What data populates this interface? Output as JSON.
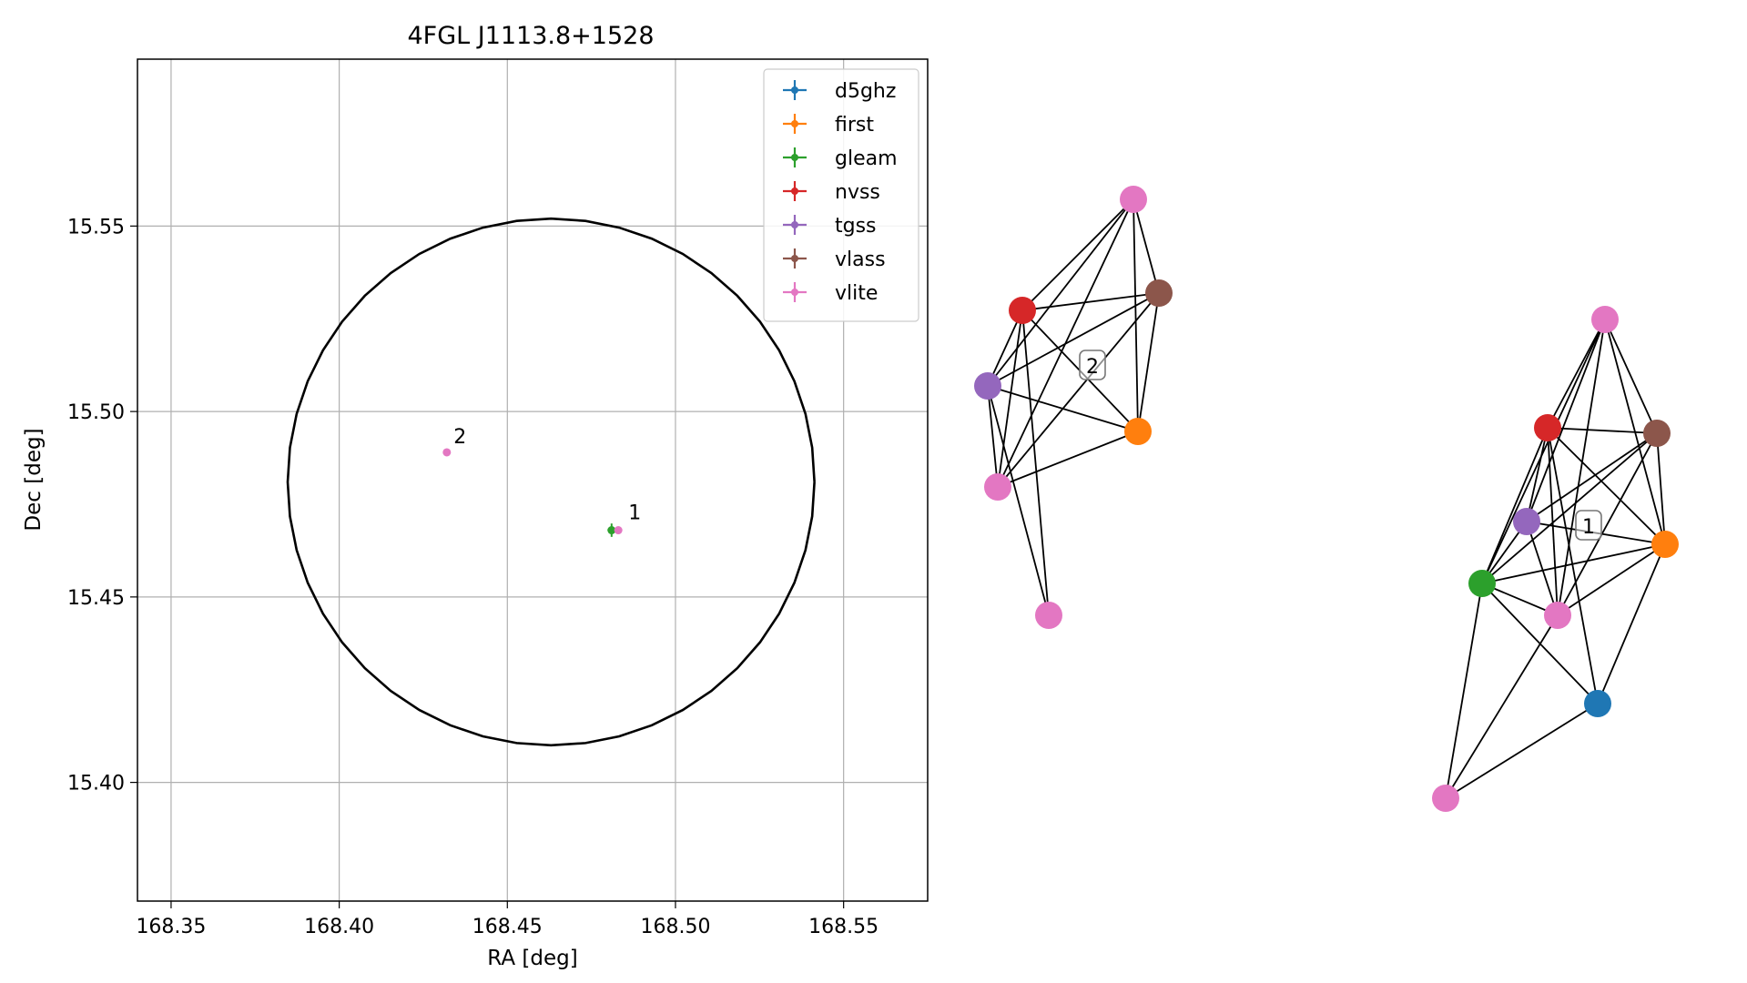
{
  "chart_data": [
    {
      "type": "scatter",
      "title": "4FGL J1113.8+1528",
      "xlabel": "RA [deg]",
      "ylabel": "Dec [deg]",
      "xlim": [
        168.34,
        168.575
      ],
      "ylim": [
        15.368,
        15.595
      ],
      "xticks": [
        168.35,
        168.4,
        168.45,
        168.5,
        168.55
      ],
      "yticks": [
        15.4,
        15.45,
        15.5,
        15.55
      ],
      "xtick_labels": [
        "168.35",
        "168.40",
        "168.45",
        "168.50",
        "168.55"
      ],
      "ytick_labels": [
        "15.40",
        "15.45",
        "15.50",
        "15.55"
      ],
      "grid": true,
      "legend_position": "top-right",
      "circle": {
        "center_ra": 168.463,
        "center_dec": 15.481,
        "radius_dec": 0.071,
        "color": "#000000"
      },
      "series": [
        {
          "name": "d5ghz",
          "color": "#1f77b4",
          "points": []
        },
        {
          "name": "first",
          "color": "#ff7f0e",
          "points": []
        },
        {
          "name": "gleam",
          "color": "#2ca02c",
          "points": [
            {
              "x": 168.481,
              "y": 15.468,
              "xerr": 0.0012,
              "yerr": 0.0018
            }
          ]
        },
        {
          "name": "nvss",
          "color": "#d62728",
          "points": []
        },
        {
          "name": "tgss",
          "color": "#9467bd",
          "points": []
        },
        {
          "name": "vlass",
          "color": "#8c564b",
          "points": []
        },
        {
          "name": "vlite",
          "color": "#e377c2",
          "points": [
            {
              "x": 168.483,
              "y": 15.468,
              "xerr": 0.0007,
              "yerr": 0.0007
            },
            {
              "x": 168.432,
              "y": 15.489,
              "xerr": 0.0008,
              "yerr": 0.0008
            }
          ]
        }
      ],
      "annotations": [
        {
          "text": "1",
          "x": 168.486,
          "y": 15.4695
        },
        {
          "text": "2",
          "x": 168.434,
          "y": 15.49
        }
      ]
    },
    {
      "type": "network",
      "clusters": [
        {
          "label": "2",
          "nodes": [
            {
              "id": "vlite_a",
              "catalog": "vlite",
              "color": "#e377c2"
            },
            {
              "id": "vlass",
              "catalog": "vlass",
              "color": "#8c564b"
            },
            {
              "id": "nvss",
              "catalog": "nvss",
              "color": "#d62728"
            },
            {
              "id": "tgss",
              "catalog": "tgss",
              "color": "#9467bd"
            },
            {
              "id": "first",
              "catalog": "first",
              "color": "#ff7f0e"
            },
            {
              "id": "vlite_b",
              "catalog": "vlite",
              "color": "#e377c2"
            },
            {
              "id": "vlite_c",
              "catalog": "vlite",
              "color": "#e377c2"
            }
          ],
          "edges": [
            [
              "vlite_a",
              "nvss"
            ],
            [
              "vlite_a",
              "tgss"
            ],
            [
              "vlite_a",
              "vlass"
            ],
            [
              "vlite_a",
              "first"
            ],
            [
              "vlite_a",
              "vlite_b"
            ],
            [
              "nvss",
              "vlass"
            ],
            [
              "nvss",
              "tgss"
            ],
            [
              "nvss",
              "first"
            ],
            [
              "nvss",
              "vlite_b"
            ],
            [
              "nvss",
              "vlite_c"
            ],
            [
              "tgss",
              "vlass"
            ],
            [
              "tgss",
              "first"
            ],
            [
              "tgss",
              "vlite_b"
            ],
            [
              "tgss",
              "vlite_c"
            ],
            [
              "vlass",
              "first"
            ],
            [
              "vlass",
              "vlite_b"
            ],
            [
              "first",
              "vlite_b"
            ]
          ]
        },
        {
          "label": "1",
          "nodes": [
            {
              "id": "vlite_a",
              "catalog": "vlite",
              "color": "#e377c2"
            },
            {
              "id": "nvss",
              "catalog": "nvss",
              "color": "#d62728"
            },
            {
              "id": "vlass",
              "catalog": "vlass",
              "color": "#8c564b"
            },
            {
              "id": "tgss",
              "catalog": "tgss",
              "color": "#9467bd"
            },
            {
              "id": "first",
              "catalog": "first",
              "color": "#ff7f0e"
            },
            {
              "id": "gleam",
              "catalog": "gleam",
              "color": "#2ca02c"
            },
            {
              "id": "vlite_b",
              "catalog": "vlite",
              "color": "#e377c2"
            },
            {
              "id": "d5ghz",
              "catalog": "d5ghz",
              "color": "#1f77b4"
            },
            {
              "id": "vlite_c",
              "catalog": "vlite",
              "color": "#e377c2"
            }
          ],
          "edges": [
            [
              "vlite_a",
              "nvss"
            ],
            [
              "vlite_a",
              "vlass"
            ],
            [
              "vlite_a",
              "tgss"
            ],
            [
              "vlite_a",
              "first"
            ],
            [
              "vlite_a",
              "gleam"
            ],
            [
              "vlite_a",
              "vlite_b"
            ],
            [
              "nvss",
              "vlass"
            ],
            [
              "nvss",
              "tgss"
            ],
            [
              "nvss",
              "first"
            ],
            [
              "nvss",
              "gleam"
            ],
            [
              "nvss",
              "vlite_b"
            ],
            [
              "nvss",
              "d5ghz"
            ],
            [
              "vlass",
              "tgss"
            ],
            [
              "vlass",
              "first"
            ],
            [
              "vlass",
              "gleam"
            ],
            [
              "vlass",
              "vlite_b"
            ],
            [
              "tgss",
              "first"
            ],
            [
              "tgss",
              "gleam"
            ],
            [
              "tgss",
              "vlite_b"
            ],
            [
              "first",
              "gleam"
            ],
            [
              "first",
              "vlite_b"
            ],
            [
              "first",
              "d5ghz"
            ],
            [
              "gleam",
              "vlite_b"
            ],
            [
              "gleam",
              "d5ghz"
            ],
            [
              "gleam",
              "vlite_c"
            ],
            [
              "vlite_b",
              "vlite_c"
            ],
            [
              "d5ghz",
              "vlite_c"
            ]
          ]
        }
      ]
    }
  ]
}
